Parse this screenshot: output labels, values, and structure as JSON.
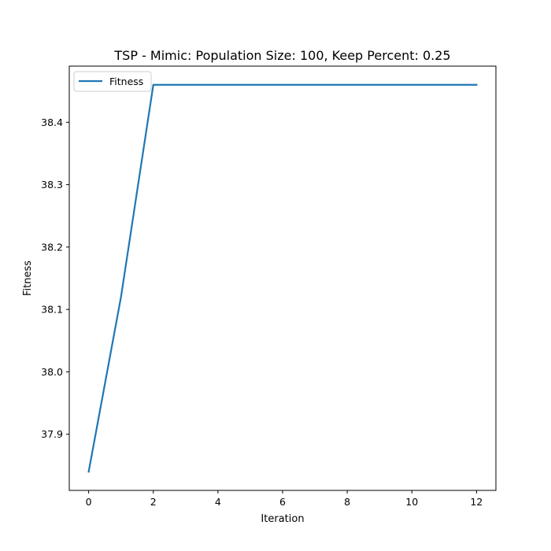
{
  "chart_data": {
    "type": "line",
    "title": "TSP - Mimic: Population Size: 100, Keep Percent: 0.25",
    "xlabel": "Iteration",
    "ylabel": "Fitness",
    "xlim": [
      -0.6,
      12.6
    ],
    "ylim": [
      37.81,
      38.49
    ],
    "xticks": [
      0,
      2,
      4,
      6,
      8,
      10,
      12
    ],
    "xtick_labels": [
      "0",
      "2",
      "4",
      "6",
      "8",
      "10",
      "12"
    ],
    "yticks": [
      37.9,
      38.0,
      38.1,
      38.2,
      38.3,
      38.4
    ],
    "ytick_labels": [
      "37.9",
      "38.0",
      "38.1",
      "38.2",
      "38.3",
      "38.4"
    ],
    "grid": false,
    "legend_position": "upper-left",
    "series": [
      {
        "name": "Fitness",
        "color": "#1f77b4",
        "x": [
          0,
          1,
          2,
          3,
          4,
          5,
          6,
          7,
          8,
          9,
          10,
          11,
          12
        ],
        "y": [
          37.84,
          38.12,
          38.46,
          38.46,
          38.46,
          38.46,
          38.46,
          38.46,
          38.46,
          38.46,
          38.46,
          38.46,
          38.46
        ]
      }
    ]
  }
}
